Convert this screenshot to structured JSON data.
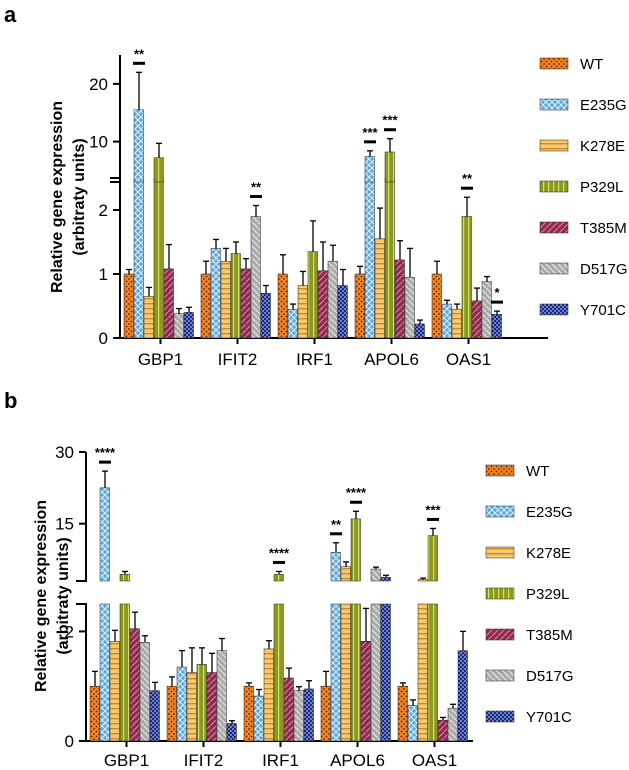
{
  "colors": {
    "WT": "#f58220",
    "E235G": "#5ba8e0",
    "K278E": "#f9c970",
    "P329L": "#8b9a1c",
    "T385M": "#8e2a4e",
    "D517G": "#aaaaaa",
    "Y701C": "#1c2a7a"
  },
  "chart_data": [
    {
      "panel": "a",
      "type": "bar",
      "ylabel": "Relative gene expression",
      "ylabel2": "(arbitraty units)",
      "categories": [
        "GBP1",
        "IFIT2",
        "IRF1",
        "APOL6",
        "OAS1"
      ],
      "legend": [
        "WT",
        "E235G",
        "K278E",
        "P329L",
        "T385M",
        "D517G",
        "Y701C"
      ],
      "axis": {
        "lower_range": [
          0,
          2.5
        ],
        "lower_ticks": [
          "0",
          "1",
          "2"
        ],
        "upper_range": [
          3,
          25
        ],
        "upper_ticks": [
          "10",
          "20"
        ]
      },
      "series": [
        {
          "name": "WT",
          "values": [
            1.0,
            1.0,
            1.0,
            1.0,
            1.0
          ],
          "errors": [
            0.07,
            0.2,
            0.3,
            0.12,
            0.2
          ]
        },
        {
          "name": "E235G",
          "values": [
            15.5,
            1.4,
            0.45,
            7.4,
            0.53
          ],
          "errors": [
            6.5,
            0.14,
            0.08,
            1.0,
            0.06
          ]
        },
        {
          "name": "K278E",
          "values": [
            0.65,
            1.2,
            0.82,
            1.55,
            0.45
          ],
          "errors": [
            0.14,
            0.2,
            0.22,
            0.48,
            0.08
          ]
        },
        {
          "name": "P329L",
          "values": [
            7.2,
            1.32,
            1.35,
            8.2,
            1.9
          ]
        },
        {
          "name": "T385M",
          "values": [
            1.08,
            1.08,
            1.05,
            1.22,
            0.58
          ],
          "errors": [
            0.38,
            0.16,
            0.45,
            0.3,
            0.2
          ]
        },
        {
          "name": "D517G",
          "values": [
            0.38,
            1.9,
            1.2,
            0.95,
            0.88
          ],
          "errors": [
            0.08,
            0.17,
            0.25,
            0.45,
            0.08
          ]
        },
        {
          "name": "Y701C",
          "values": [
            0.4,
            0.7,
            0.82,
            0.22,
            0.37
          ],
          "errors": [
            0.08,
            0.12,
            0.25,
            0.06,
            0.05
          ]
        }
      ],
      "errors_P329L": [
        2.5,
        0.18,
        0.48,
        2.3,
        0.3
      ],
      "significance": [
        {
          "category": "GBP1",
          "series": "E235G",
          "label": "**"
        },
        {
          "category": "IFIT2",
          "series": "D517G",
          "label": "**"
        },
        {
          "category": "APOL6",
          "series": "E235G",
          "label": "***"
        },
        {
          "category": "APOL6",
          "series": "P329L",
          "label": "***"
        },
        {
          "category": "OAS1",
          "series": "P329L",
          "label": "**"
        },
        {
          "category": "OAS1",
          "series": "Y701C",
          "label": "*"
        }
      ]
    },
    {
      "panel": "b",
      "type": "bar",
      "ylabel": "Relative gene expression",
      "ylabel2": "(arbitraty units)",
      "categories": [
        "GBP1",
        "IFIT2",
        "IRF1",
        "APOL6",
        "OAS1"
      ],
      "legend": [
        "WT",
        "E235G",
        "K278E",
        "P329L",
        "T385M",
        "D517G",
        "Y701C"
      ],
      "axis": {
        "lower_range": [
          0,
          2.5
        ],
        "lower_ticks": [
          "0",
          "2"
        ],
        "upper_range": [
          3,
          30
        ],
        "upper_ticks": [
          "15",
          "30"
        ]
      },
      "series": [
        {
          "name": "WT",
          "values": [
            1.0,
            1.0,
            1.0,
            1.0,
            1.0
          ],
          "errors": [
            0.27,
            0.17,
            0.06,
            0.27,
            0.06
          ]
        },
        {
          "name": "E235G",
          "values": [
            22.5,
            1.35,
            0.82,
            9.0,
            0.65
          ],
          "errors": [
            3.5,
            0.3,
            0.12,
            2.0,
            0.1
          ]
        },
        {
          "name": "K278E",
          "values": [
            1.82,
            1.25,
            1.68,
            6.0,
            3.3
          ],
          "errors": [
            0.2,
            0.45,
            0.15,
            1.0,
            0.3
          ]
        },
        {
          "name": "P329L",
          "values": [
            4.4,
            1.4,
            4.4,
            16.0,
            12.5
          ],
          "errors": [
            0.6,
            0.3,
            0.6,
            1.6,
            1.5
          ]
        },
        {
          "name": "T385M",
          "values": [
            2.05,
            1.25,
            1.15,
            1.82,
            0.38
          ],
          "errors": [
            0.3,
            0.35,
            0.18,
            0.6,
            0.05
          ]
        },
        {
          "name": "D517G",
          "values": [
            1.8,
            1.65,
            0.92,
            5.5,
            0.6
          ],
          "errors": [
            0.12,
            0.22,
            0.07,
            0.4,
            0.07
          ]
        },
        {
          "name": "Y701C",
          "values": [
            0.92,
            0.32,
            0.95,
            3.8,
            1.65
          ],
          "errors": [
            0.15,
            0.05,
            0.15,
            0.4,
            0.35
          ]
        }
      ],
      "significance": [
        {
          "category": "GBP1",
          "series": "E235G",
          "label": "****"
        },
        {
          "category": "IRF1",
          "series": "P329L",
          "label": "****"
        },
        {
          "category": "APOL6",
          "series": "E235G",
          "label": "**"
        },
        {
          "category": "APOL6",
          "series": "P329L",
          "label": "****"
        },
        {
          "category": "OAS1",
          "series": "P329L",
          "label": "***"
        }
      ]
    }
  ]
}
